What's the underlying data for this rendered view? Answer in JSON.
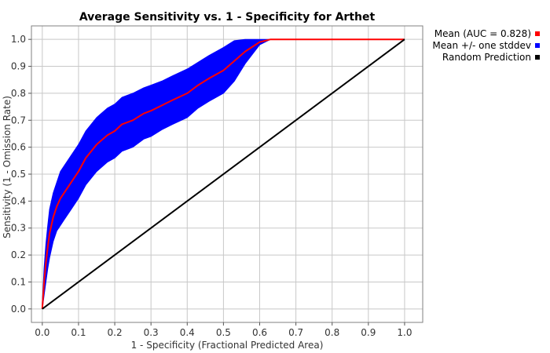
{
  "chart_data": {
    "type": "line",
    "title": "Average Sensitivity vs. 1 - Specificity for Arthet",
    "xlabel": "1 - Specificity (Fractional Predicted Area)",
    "ylabel": "Sensitivity (1 - Omission Rate)",
    "xlim": [
      -0.03,
      1.05
    ],
    "ylim": [
      -0.05,
      1.05
    ],
    "xticks": [
      0.0,
      0.1,
      0.2,
      0.3,
      0.4,
      0.5,
      0.6,
      0.7,
      0.8,
      0.9,
      1.0
    ],
    "yticks": [
      0.0,
      0.1,
      0.2,
      0.3,
      0.4,
      0.5,
      0.6,
      0.7,
      0.8,
      0.9,
      1.0
    ],
    "xtick_labels": [
      "0.0",
      "0.1",
      "0.2",
      "0.3",
      "0.4",
      "0.5",
      "0.6",
      "0.7",
      "0.8",
      "0.9",
      "1.0"
    ],
    "ytick_labels": [
      "0.0",
      "0.1",
      "0.2",
      "0.3",
      "0.4",
      "0.5",
      "0.6",
      "0.7",
      "0.8",
      "0.9",
      "1.0"
    ],
    "grid": true,
    "legend_position": "outside-right-top",
    "series": [
      {
        "name": "Mean (AUC = 0.828)",
        "color": "#ff0000",
        "x": [
          0.0,
          0.005,
          0.01,
          0.015,
          0.02,
          0.03,
          0.04,
          0.05,
          0.06,
          0.08,
          0.1,
          0.12,
          0.15,
          0.18,
          0.2,
          0.22,
          0.25,
          0.28,
          0.3,
          0.33,
          0.36,
          0.4,
          0.43,
          0.46,
          0.5,
          0.53,
          0.56,
          0.6,
          0.63,
          1.0
        ],
        "y": [
          0.0,
          0.1,
          0.17,
          0.23,
          0.28,
          0.34,
          0.38,
          0.41,
          0.43,
          0.47,
          0.51,
          0.56,
          0.61,
          0.645,
          0.66,
          0.685,
          0.7,
          0.725,
          0.735,
          0.755,
          0.775,
          0.8,
          0.83,
          0.855,
          0.885,
          0.92,
          0.955,
          0.99,
          1.0,
          1.0
        ]
      },
      {
        "name": "Mean +/- one stddev",
        "color": "#0000ff",
        "x": [
          0.0,
          0.005,
          0.01,
          0.015,
          0.02,
          0.03,
          0.04,
          0.05,
          0.06,
          0.08,
          0.1,
          0.12,
          0.15,
          0.18,
          0.2,
          0.22,
          0.25,
          0.28,
          0.3,
          0.33,
          0.36,
          0.4,
          0.43,
          0.46,
          0.5,
          0.53,
          0.56,
          0.6,
          0.63,
          1.0
        ],
        "upper": [
          0.02,
          0.15,
          0.24,
          0.31,
          0.37,
          0.43,
          0.47,
          0.51,
          0.53,
          0.57,
          0.61,
          0.66,
          0.71,
          0.745,
          0.76,
          0.785,
          0.8,
          0.82,
          0.83,
          0.845,
          0.865,
          0.89,
          0.915,
          0.94,
          0.97,
          0.995,
          1.0,
          1.0,
          1.0,
          1.0
        ],
        "lower": [
          0.0,
          0.05,
          0.1,
          0.15,
          0.19,
          0.25,
          0.29,
          0.31,
          0.33,
          0.37,
          0.41,
          0.46,
          0.51,
          0.545,
          0.56,
          0.585,
          0.6,
          0.63,
          0.64,
          0.665,
          0.685,
          0.71,
          0.745,
          0.77,
          0.8,
          0.845,
          0.91,
          0.98,
          1.0,
          1.0
        ]
      },
      {
        "name": "Random Prediction",
        "color": "#000000",
        "x": [
          0.0,
          1.0
        ],
        "y": [
          0.0,
          1.0
        ]
      }
    ]
  }
}
